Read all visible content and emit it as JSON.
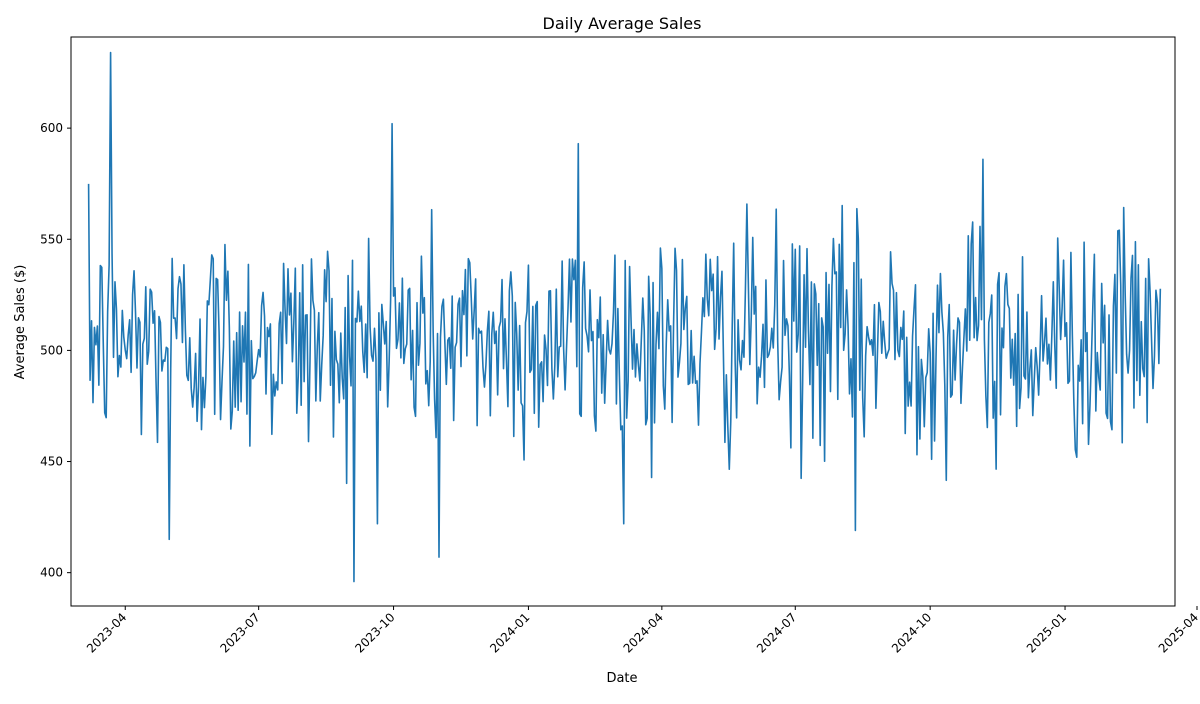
{
  "chart_data": {
    "type": "line",
    "title": "Daily Average Sales",
    "xlabel": "Date",
    "ylabel": "Average Sales ($)",
    "x_range": [
      "2023-02-23",
      "2025-03-17"
    ],
    "ylim": [
      385,
      641
    ],
    "x_ticks": [
      "2023-04-01",
      "2023-07-01",
      "2023-10-01",
      "2024-01-01",
      "2024-04-01",
      "2024-07-01",
      "2024-10-01",
      "2025-01-01",
      "2025-04-01"
    ],
    "x_tick_labels": [
      "2023-04",
      "2023-07",
      "2023-10",
      "2024-01",
      "2024-04",
      "2024-07",
      "2024-10",
      "2025-01",
      "2025-04"
    ],
    "y_ticks": [
      400,
      450,
      500,
      550,
      600
    ],
    "y_tick_labels": [
      "400",
      "450",
      "500",
      "550",
      "600"
    ],
    "grid": false,
    "line_color": "#1f77b4",
    "series": [
      {
        "frequency": "daily",
        "x_start": "2023-03-07",
        "x_end": "2025-03-07",
        "approx_mean": 505,
        "approx_std": 35,
        "notable_points": [
          {
            "x": "2023-03-22",
            "y": 634
          },
          {
            "x": "2023-05-01",
            "y": 415
          },
          {
            "x": "2023-09-04",
            "y": 396
          },
          {
            "x": "2023-09-30",
            "y": 602
          },
          {
            "x": "2023-11-01",
            "y": 407
          },
          {
            "x": "2024-02-04",
            "y": 593
          },
          {
            "x": "2024-08-11",
            "y": 419
          },
          {
            "x": "2024-11-06",
            "y": 586
          }
        ]
      }
    ]
  }
}
